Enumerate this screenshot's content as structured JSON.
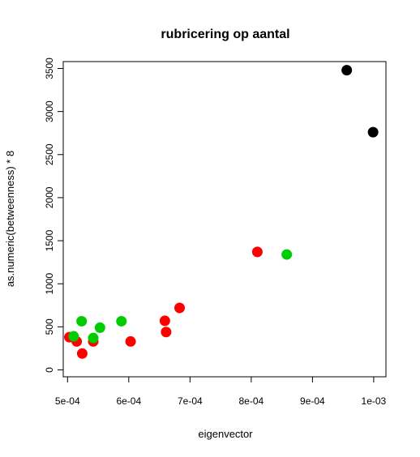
{
  "chart_data": {
    "type": "scatter",
    "title": "rubricering op aantal",
    "xlabel": "eigenvector",
    "ylabel": "as.numeric(betweenness) * 8",
    "xlim": [
      0.000493,
      0.00102
    ],
    "ylim": [
      -80,
      3580
    ],
    "x_ticks": [
      0.0005,
      0.0006,
      0.0007,
      0.0008,
      0.0009,
      0.001
    ],
    "x_tick_labels": [
      "5e-04",
      "6e-04",
      "7e-04",
      "8e-04",
      "9e-04",
      "1e-03"
    ],
    "y_ticks": [
      0,
      500,
      1000,
      1500,
      2000,
      2500,
      3000,
      3500
    ],
    "y_tick_labels": [
      "0",
      "500",
      "1000",
      "1500",
      "2000",
      "2500",
      "3000",
      "3500"
    ],
    "grid": false,
    "colors": {
      "red": "#ff0000",
      "green": "#00cd00",
      "black": "#000000"
    },
    "series": [
      {
        "color": "#ff0000",
        "points": [
          {
            "x": 0.000503,
            "y": 380
          },
          {
            "x": 0.000515,
            "y": 330
          },
          {
            "x": 0.000524,
            "y": 190
          },
          {
            "x": 0.000542,
            "y": 330
          },
          {
            "x": 0.000603,
            "y": 330
          },
          {
            "x": 0.000659,
            "y": 570
          },
          {
            "x": 0.000661,
            "y": 440
          },
          {
            "x": 0.000683,
            "y": 720
          },
          {
            "x": 0.00081,
            "y": 1370
          }
        ]
      },
      {
        "color": "#00cd00",
        "points": [
          {
            "x": 0.00051,
            "y": 390
          },
          {
            "x": 0.000523,
            "y": 565
          },
          {
            "x": 0.000542,
            "y": 370
          },
          {
            "x": 0.000553,
            "y": 490
          },
          {
            "x": 0.000588,
            "y": 565
          },
          {
            "x": 0.000858,
            "y": 1340
          }
        ]
      },
      {
        "color": "#000000",
        "points": [
          {
            "x": 0.000956,
            "y": 3480
          },
          {
            "x": 0.000999,
            "y": 2760
          }
        ]
      }
    ]
  }
}
